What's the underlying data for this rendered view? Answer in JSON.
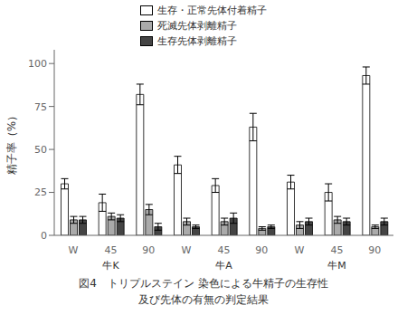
{
  "chart_data": {
    "type": "bar",
    "categories": [
      "W",
      "45",
      "90",
      "W",
      "45",
      "90",
      "W",
      "45",
      "90"
    ],
    "groups": [
      "牛K",
      "牛A",
      "牛M"
    ],
    "series": [
      {
        "name": "生存・正常先体付着精子",
        "color": "#ffffff",
        "values": [
          30,
          19,
          82,
          41,
          29,
          63,
          31,
          25,
          93
        ],
        "errors": [
          3,
          5,
          6,
          5,
          4,
          8,
          4,
          5,
          5
        ]
      },
      {
        "name": "死滅先体剥離精子",
        "color": "#aaaaaa",
        "values": [
          9,
          11,
          15,
          8,
          8,
          4,
          6,
          9,
          5
        ],
        "errors": [
          2,
          2,
          3,
          2,
          2,
          1,
          2,
          2,
          1
        ]
      },
      {
        "name": "生存先体剥離精子",
        "color": "#444444",
        "values": [
          9,
          10,
          5,
          5,
          10,
          5,
          8,
          8,
          8
        ],
        "errors": [
          2,
          2,
          2,
          1,
          3,
          1,
          2,
          2,
          2
        ]
      }
    ],
    "ylabel": "精子率（%）",
    "ylim": [
      0,
      108
    ],
    "yticks": [
      0,
      25,
      50,
      75,
      100
    ],
    "grid": false,
    "annotations": [
      "図4　トリプルステイン 染色による牛精子の生存性",
      "及び先体の有無の判定結果"
    ]
  }
}
